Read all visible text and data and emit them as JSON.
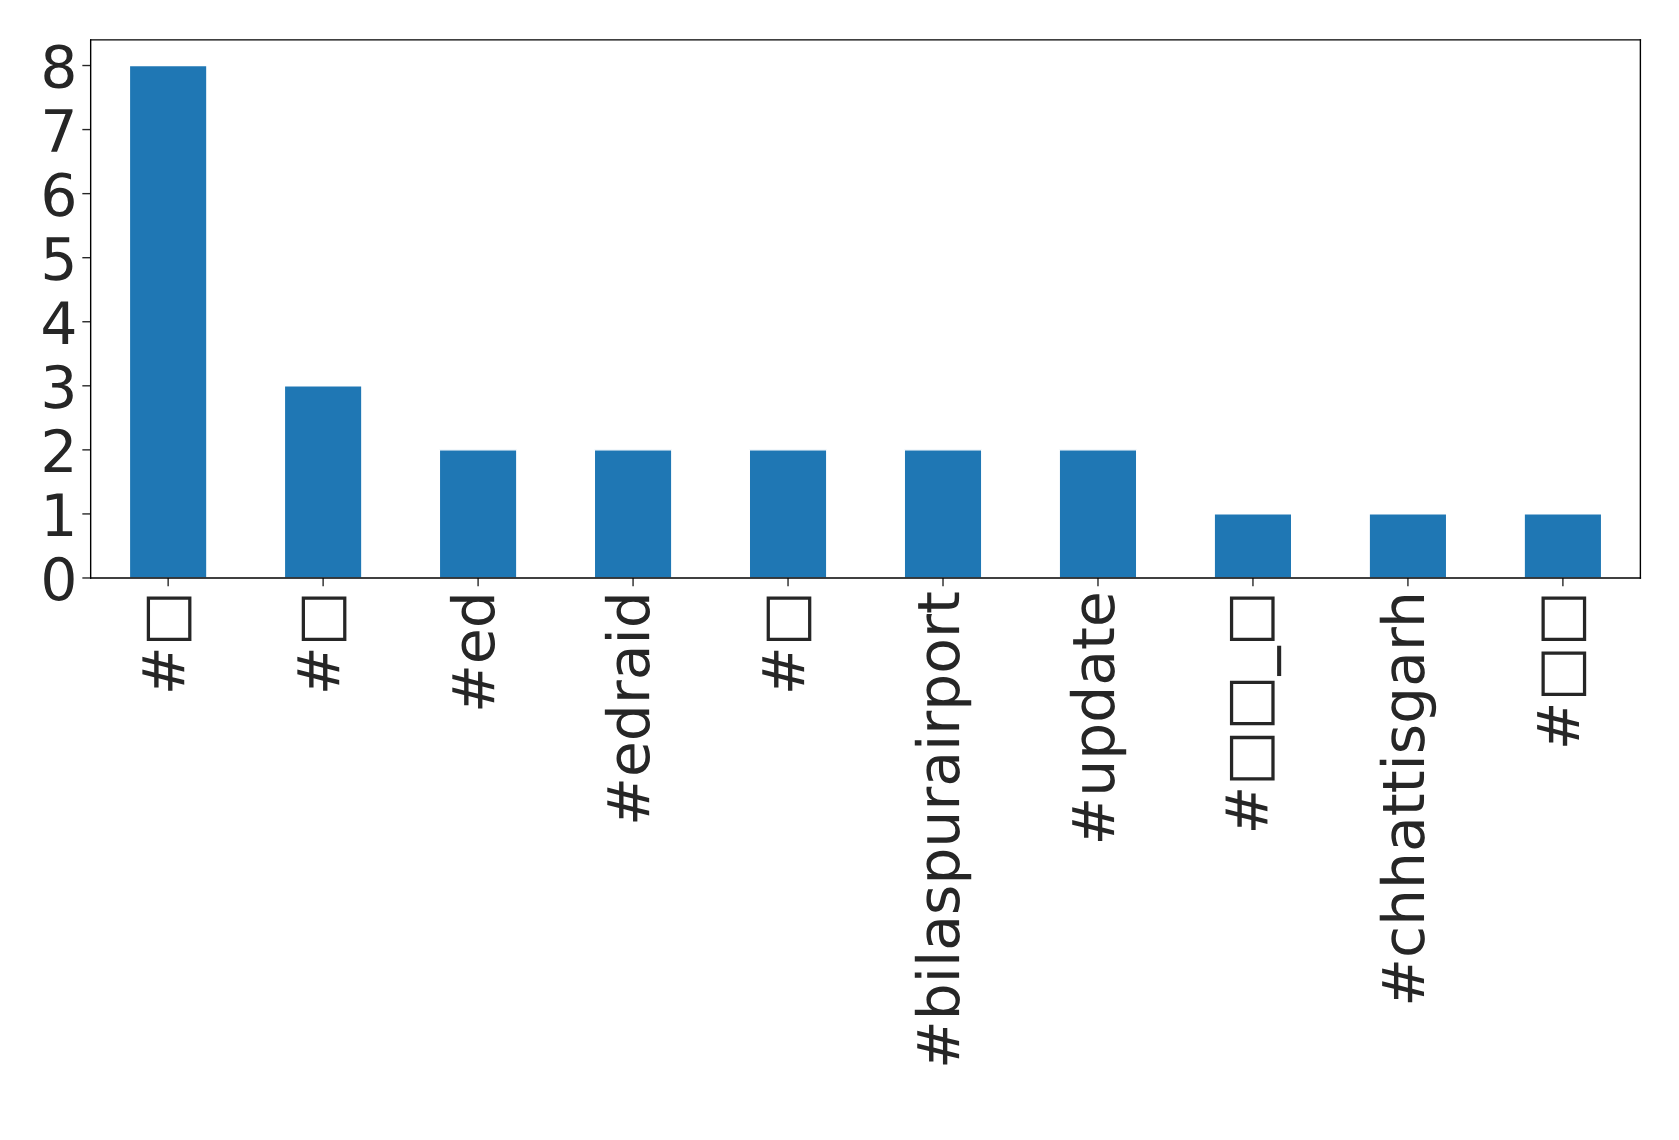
{
  "chart_data": {
    "type": "bar",
    "categories": [
      "#□",
      "#□",
      "#ed",
      "#edraid",
      "#□",
      "#bilaspurairport",
      "#update",
      "#□□_□",
      "#chhattisgarh",
      "#□□"
    ],
    "values": [
      8,
      3,
      2,
      2,
      2,
      2,
      2,
      1,
      1,
      1
    ],
    "color": "#1f77b4",
    "ylim": [
      0,
      8.4
    ],
    "yticks": [
      0,
      1,
      2,
      3,
      4,
      5,
      6,
      7,
      8
    ],
    "grid": false,
    "legend": false
  }
}
